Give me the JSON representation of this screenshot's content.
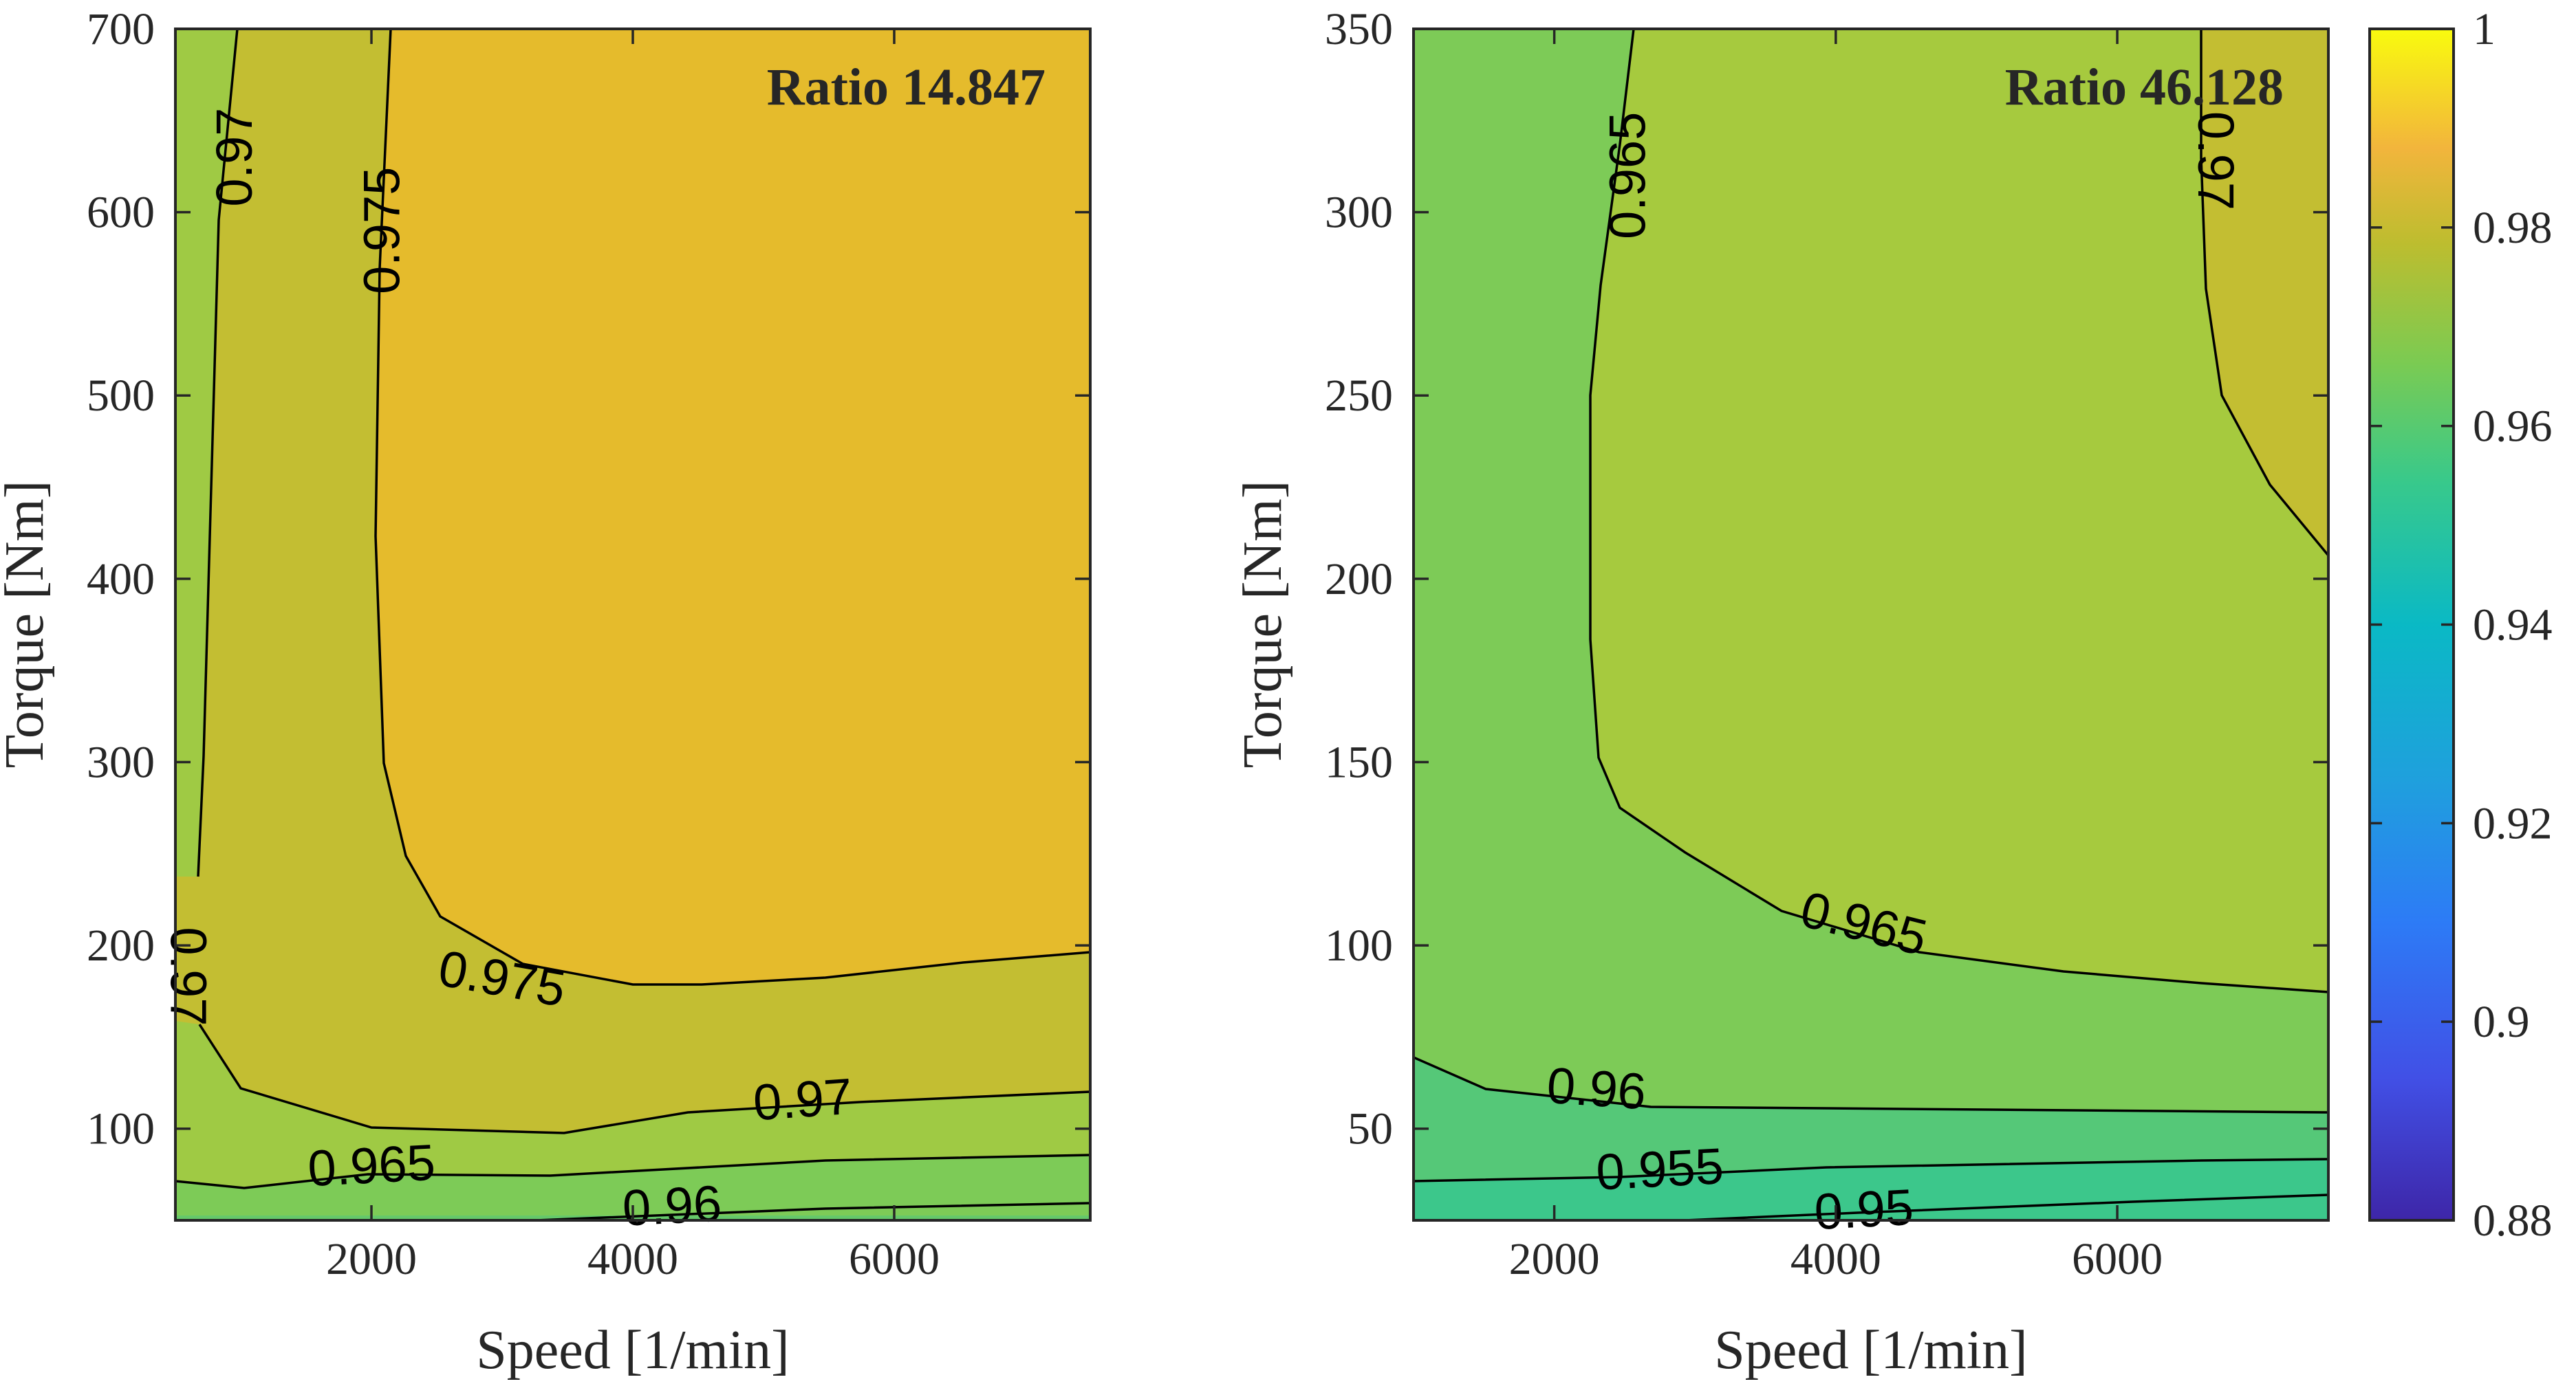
{
  "colorbar": {
    "min": 0.88,
    "max": 1,
    "ticks": [
      "1",
      "0.98",
      "0.96",
      "0.94",
      "0.92",
      "0.9",
      "0.88"
    ]
  },
  "chart_data": [
    {
      "type": "contour",
      "title": "Ratio 14.847",
      "xlabel": "Speed [1/min]",
      "ylabel": "Torque [Nm]",
      "xlim": [
        500,
        7500
      ],
      "ylim": [
        50,
        700
      ],
      "x_ticks": [
        2000,
        4000,
        6000
      ],
      "x_tick_labels": [
        "2000",
        "4000",
        "6000"
      ],
      "y_ticks": [
        100,
        200,
        300,
        400,
        500,
        600,
        700
      ],
      "y_tick_labels": [
        "100",
        "200",
        "300",
        "400",
        "500",
        "600",
        "700"
      ],
      "contour_labels": [
        {
          "text": "0.97",
          "x": 950,
          "y": 630,
          "angle": -90
        },
        {
          "text": "0.975",
          "x": 2080,
          "y": 590,
          "angle": -90
        },
        {
          "text": "0.975",
          "x": 3000,
          "y": 182,
          "angle": 10
        },
        {
          "text": "0.97",
          "x": 600,
          "y": 183,
          "angle": 90
        },
        {
          "text": "0.97",
          "x": 5300,
          "y": 116,
          "angle": -4
        },
        {
          "text": "0.965",
          "x": 2000,
          "y": 80,
          "angle": -3
        },
        {
          "text": "0.96",
          "x": 4300,
          "y": 58,
          "angle": -3
        }
      ]
    },
    {
      "type": "contour",
      "title": "Ratio 46.128",
      "xlabel": "Speed [1/min]",
      "ylabel": "Torque [Nm]",
      "xlim": [
        1000,
        7500
      ],
      "ylim": [
        25,
        350
      ],
      "x_ticks": [
        2000,
        4000,
        6000
      ],
      "x_tick_labels": [
        "2000",
        "4000",
        "6000"
      ],
      "y_ticks": [
        50,
        100,
        150,
        200,
        250,
        300,
        350
      ],
      "y_tick_labels": [
        "50",
        "100",
        "150",
        "200",
        "250",
        "300",
        "350"
      ],
      "contour_labels": [
        {
          "text": "0.965",
          "x": 2520,
          "y": 310,
          "angle": -90
        },
        {
          "text": "0.97",
          "x": 6700,
          "y": 314,
          "angle": 90
        },
        {
          "text": "0.965",
          "x": 4200,
          "y": 106,
          "angle": 14
        },
        {
          "text": "0.96",
          "x": 2300,
          "y": 61,
          "angle": 4
        },
        {
          "text": "0.955",
          "x": 2750,
          "y": 39,
          "angle": -3
        },
        {
          "text": "0.95",
          "x": 4200,
          "y": 28,
          "angle": -3
        }
      ]
    }
  ]
}
